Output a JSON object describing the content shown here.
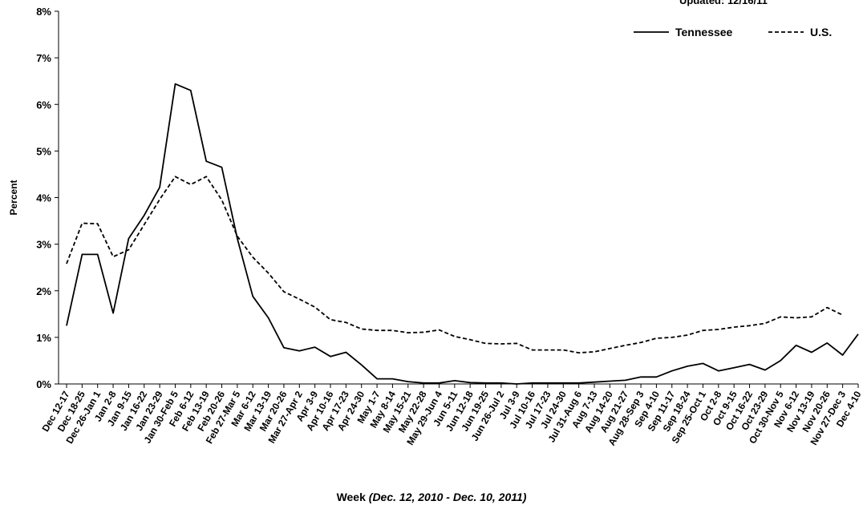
{
  "chart_data": {
    "type": "line",
    "updated_text": "Updated: 12/16/11",
    "ylabel": "Percent",
    "xlabel_main": "Week",
    "xlabel_range": "(Dec. 12, 2010 - Dec. 10, 2011)",
    "ylim": [
      0,
      8
    ],
    "yticks": [
      "0%",
      "1%",
      "2%",
      "3%",
      "4%",
      "5%",
      "6%",
      "7%",
      "8%"
    ],
    "legend_position": "top-right",
    "categories": [
      "Dec 12-17",
      "Dec 18-25",
      "Dec 26-Jan 1",
      "Jan 2-8",
      "Jan 9-15",
      "Jan 16-22",
      "Jan 23-29",
      "Jan 30-Feb 5",
      "Feb 6-12",
      "Feb 13-19",
      "Feb 20-26",
      "Feb 27-Mar 5",
      "Mar 6-12",
      "Mar 13-19",
      "Mar 20-26",
      "Mar 27-Apr 2",
      "Apr 3-9",
      "Apr 10-16",
      "Apr 17-23",
      "Apr 24-30",
      "May 1-7",
      "May 8-14",
      "May 15-21",
      "May 22-28",
      "May 29-Jun 4",
      "Jun 5-11",
      "Jun 12-18",
      "Jun 19-25",
      "Jun 26-Jul 2",
      "Jul 3-9",
      "Jul 10-16",
      "Jul 17-23",
      "Jul 24-30",
      "Jul 31-Aug 6",
      "Aug 7-13",
      "Aug 14-20",
      "Aug 21-27",
      "Aug 28-Sep 3",
      "Sep 4-10",
      "Sep 11-17",
      "Sep 18-24",
      "Sep 25-Oct 1",
      "Oct 2-8",
      "Oct 9-15",
      "Oct 16-22",
      "Oct 23-29",
      "Oct 30-Nov 5",
      "Nov 6-12",
      "Nov 13-19",
      "Nov 20-26",
      "Nov 27-Dec 3",
      "Dec 4-10"
    ],
    "series": [
      {
        "name": "Tennessee",
        "style": "solid",
        "color": "#000000",
        "values": [
          1.25,
          2.78,
          2.78,
          1.52,
          3.12,
          3.62,
          4.22,
          6.44,
          6.3,
          4.78,
          4.65,
          3.12,
          1.88,
          1.42,
          0.78,
          0.71,
          0.79,
          0.59,
          0.68,
          0.41,
          0.11,
          0.11,
          0.05,
          0.02,
          0.02,
          0.07,
          0.03,
          0.02,
          0.02,
          0.0,
          0.02,
          0.02,
          0.02,
          0.02,
          0.04,
          0.06,
          0.08,
          0.15,
          0.15,
          0.28,
          0.38,
          0.44,
          0.28,
          0.35,
          0.42,
          0.3,
          0.5,
          0.83,
          0.68,
          0.88,
          0.62,
          1.07
        ]
      },
      {
        "name": "U.S.",
        "style": "dashed",
        "color": "#000000",
        "values": [
          2.58,
          3.45,
          3.44,
          2.73,
          2.88,
          3.42,
          3.96,
          4.45,
          4.28,
          4.45,
          3.95,
          3.17,
          2.72,
          2.38,
          1.98,
          1.82,
          1.65,
          1.38,
          1.32,
          1.18,
          1.15,
          1.15,
          1.1,
          1.11,
          1.16,
          1.02,
          0.95,
          0.87,
          0.86,
          0.87,
          0.73,
          0.73,
          0.73,
          0.67,
          0.69,
          0.76,
          0.83,
          0.89,
          0.98,
          1.0,
          1.05,
          1.15,
          1.17,
          1.22,
          1.25,
          1.3,
          1.44,
          1.42,
          1.44,
          1.64,
          1.48,
          null
        ]
      }
    ]
  }
}
